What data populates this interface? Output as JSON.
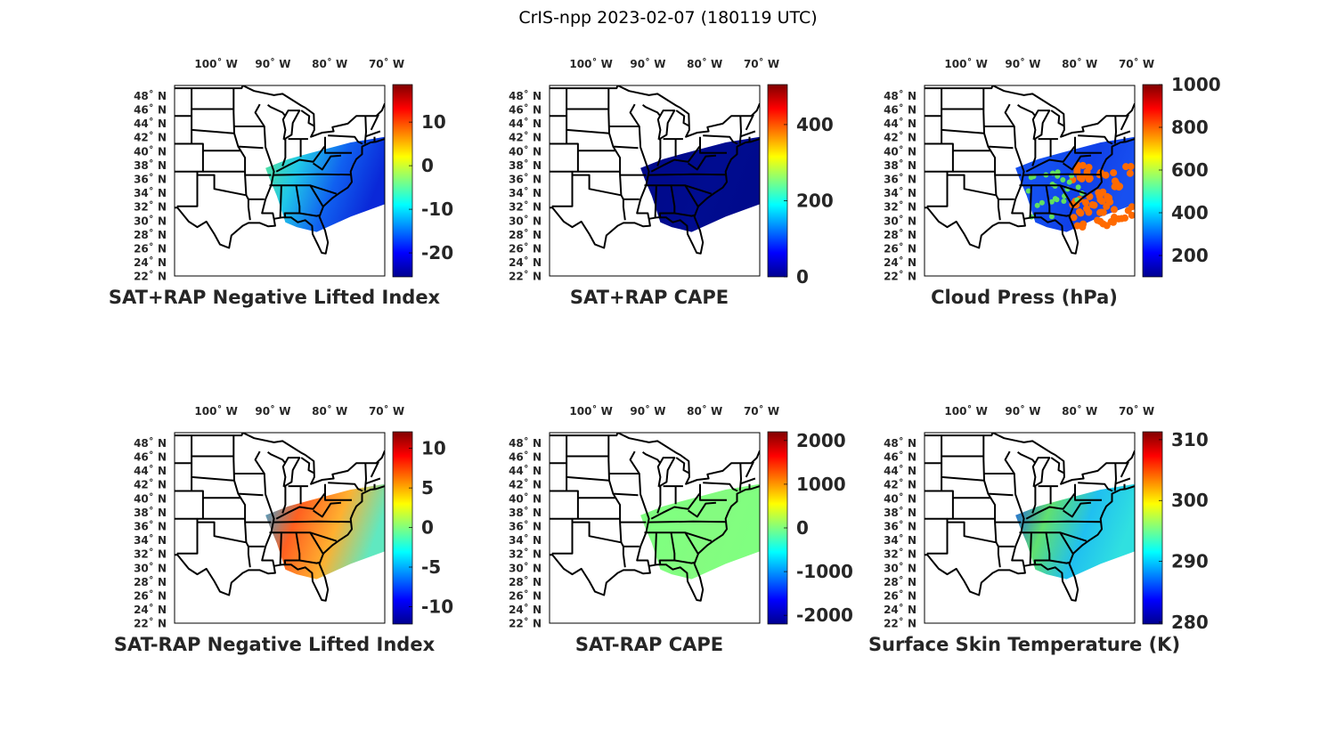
{
  "figure_title": "CrIS-npp 2023-02-07 (180119 UTC)",
  "chart_data": [
    {
      "type": "heatmap",
      "title": "SAT+RAP Negative Lifted Index",
      "lon_ticks": [
        "100˚ W",
        "90˚ W",
        "80˚ W",
        "70˚ W"
      ],
      "lat_ticks": [
        "48˚ N",
        "46˚ N",
        "44˚ N",
        "42˚ N",
        "40˚ N",
        "38˚ N",
        "36˚ N",
        "34˚ N",
        "32˚ N",
        "30˚ N",
        "28˚ N",
        "26˚ N",
        "24˚ N",
        "22˚ N"
      ],
      "colorbar_ticks": [
        10,
        0,
        -10,
        -20
      ],
      "clim": [
        -25.5,
        18.6
      ],
      "swath_colors": [
        "#60e890",
        "#20c8e8",
        "#1060f0",
        "#0a28d8"
      ]
    },
    {
      "type": "heatmap",
      "title": "SAT+RAP CAPE",
      "lon_ticks": [
        "100˚ W",
        "90˚ W",
        "80˚ W",
        "70˚ W"
      ],
      "lat_ticks": [
        "48˚ N",
        "46˚ N",
        "44˚ N",
        "42˚ N",
        "40˚ N",
        "38˚ N",
        "36˚ N",
        "34˚ N",
        "32˚ N",
        "30˚ N",
        "28˚ N",
        "26˚ N",
        "24˚ N",
        "22˚ N"
      ],
      "colorbar_ticks": [
        400,
        200,
        0
      ],
      "clim": [
        0,
        505
      ],
      "swath_colors": [
        "#000a8c",
        "#000a8c",
        "#000c90",
        "#000a8c"
      ]
    },
    {
      "type": "scatter",
      "title": "Cloud Press (hPa)",
      "lon_ticks": [
        "100˚ W",
        "90˚ W",
        "80˚ W",
        "70˚ W"
      ],
      "lat_ticks": [
        "48˚ N",
        "46˚ N",
        "44˚ N",
        "42˚ N",
        "40˚ N",
        "38˚ N",
        "36˚ N",
        "34˚ N",
        "32˚ N",
        "30˚ N",
        "28˚ N",
        "26˚ N",
        "24˚ N",
        "22˚ N"
      ],
      "colorbar_ticks": [
        1000,
        800,
        600,
        400,
        200
      ],
      "clim": [
        100,
        1000
      ],
      "swath_colors": [
        "#1850f0",
        "#1450f0",
        "#1040e8",
        "#1850f0"
      ],
      "scatter_color": "#ff6a00"
    },
    {
      "type": "heatmap",
      "title": "SAT-RAP Negative Lifted Index",
      "lon_ticks": [
        "100˚ W",
        "90˚ W",
        "80˚ W",
        "70˚ W"
      ],
      "lat_ticks": [
        "48˚ N",
        "46˚ N",
        "44˚ N",
        "42˚ N",
        "40˚ N",
        "38˚ N",
        "36˚ N",
        "34˚ N",
        "32˚ N",
        "30˚ N",
        "28˚ N",
        "26˚ N",
        "24˚ N",
        "22˚ N"
      ],
      "colorbar_ticks": [
        10,
        5,
        0,
        -5,
        -10
      ],
      "clim": [
        -12.2,
        12.1
      ],
      "swath_colors": [
        "#20b0f0",
        "#ff6020",
        "#ffb030",
        "#60e8c0"
      ]
    },
    {
      "type": "heatmap",
      "title": "SAT-RAP CAPE",
      "lon_ticks": [
        "100˚ W",
        "90˚ W",
        "80˚ W",
        "70˚ W"
      ],
      "lat_ticks": [
        "48˚ N",
        "46˚ N",
        "44˚ N",
        "42˚ N",
        "40˚ N",
        "38˚ N",
        "36˚ N",
        "34˚ N",
        "32˚ N",
        "30˚ N",
        "28˚ N",
        "26˚ N",
        "24˚ N",
        "22˚ N"
      ],
      "colorbar_ticks": [
        2000,
        1000,
        0,
        -1000,
        -2000
      ],
      "clim": [
        -2200,
        2200
      ],
      "swath_colors": [
        "#80ff80",
        "#80ff80",
        "#84fc80",
        "#80ff80"
      ]
    },
    {
      "type": "heatmap",
      "title": "Surface Skin Temperature (K)",
      "lon_ticks": [
        "100˚ W",
        "90˚ W",
        "80˚ W",
        "70˚ W"
      ],
      "lat_ticks": [
        "48˚ N",
        "46˚ N",
        "44˚ N",
        "42˚ N",
        "40˚ N",
        "38˚ N",
        "36˚ N",
        "34˚ N",
        "32˚ N",
        "30˚ N",
        "28˚ N",
        "26˚ N",
        "24˚ N",
        "22˚ N"
      ],
      "colorbar_ticks": [
        310,
        300,
        290,
        280
      ],
      "clim": [
        279.7,
        311.3
      ],
      "swath_colors": [
        "#1850f0",
        "#60e070",
        "#20c0f0",
        "#30e0e0"
      ]
    }
  ]
}
